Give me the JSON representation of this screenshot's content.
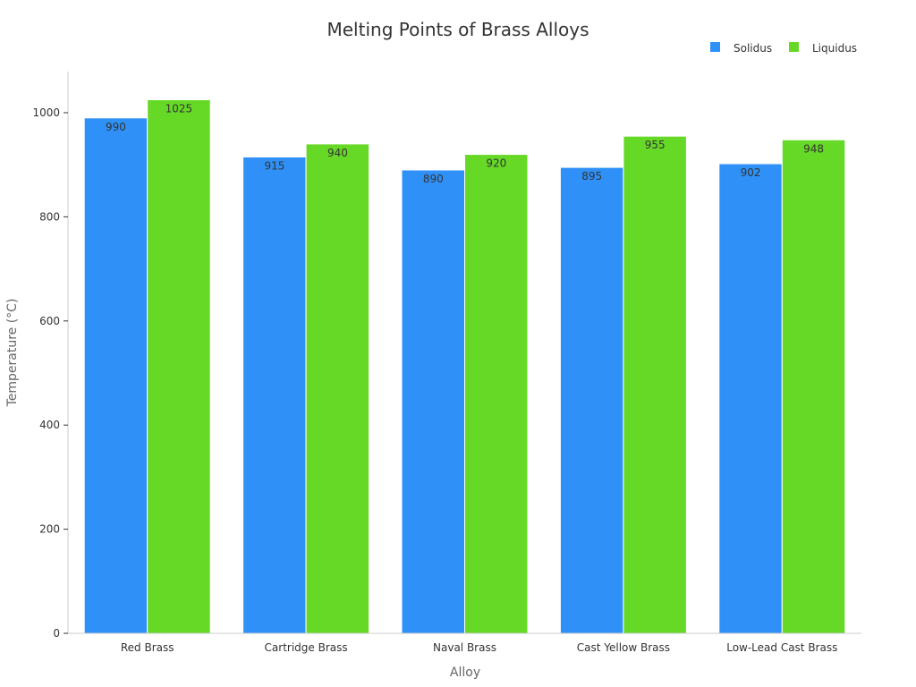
{
  "chart_data": {
    "type": "bar",
    "title": "Melting Points of Brass Alloys",
    "xlabel": "Alloy",
    "ylabel": "Temperature (°C)",
    "categories": [
      "Red Brass",
      "Cartridge Brass",
      "Naval Brass",
      "Cast Yellow Brass",
      "Low-Lead Cast Brass"
    ],
    "series": [
      {
        "name": "Solidus",
        "color": "#2f91f7",
        "values": [
          990,
          915,
          890,
          895,
          902
        ]
      },
      {
        "name": "Liquidus",
        "color": "#66d927",
        "values": [
          1025,
          940,
          920,
          955,
          948
        ]
      }
    ],
    "ylim": [
      0,
      1080
    ],
    "yticks": [
      0,
      200,
      400,
      600,
      800,
      1000
    ],
    "legend_position": "top-right",
    "grid": false
  }
}
